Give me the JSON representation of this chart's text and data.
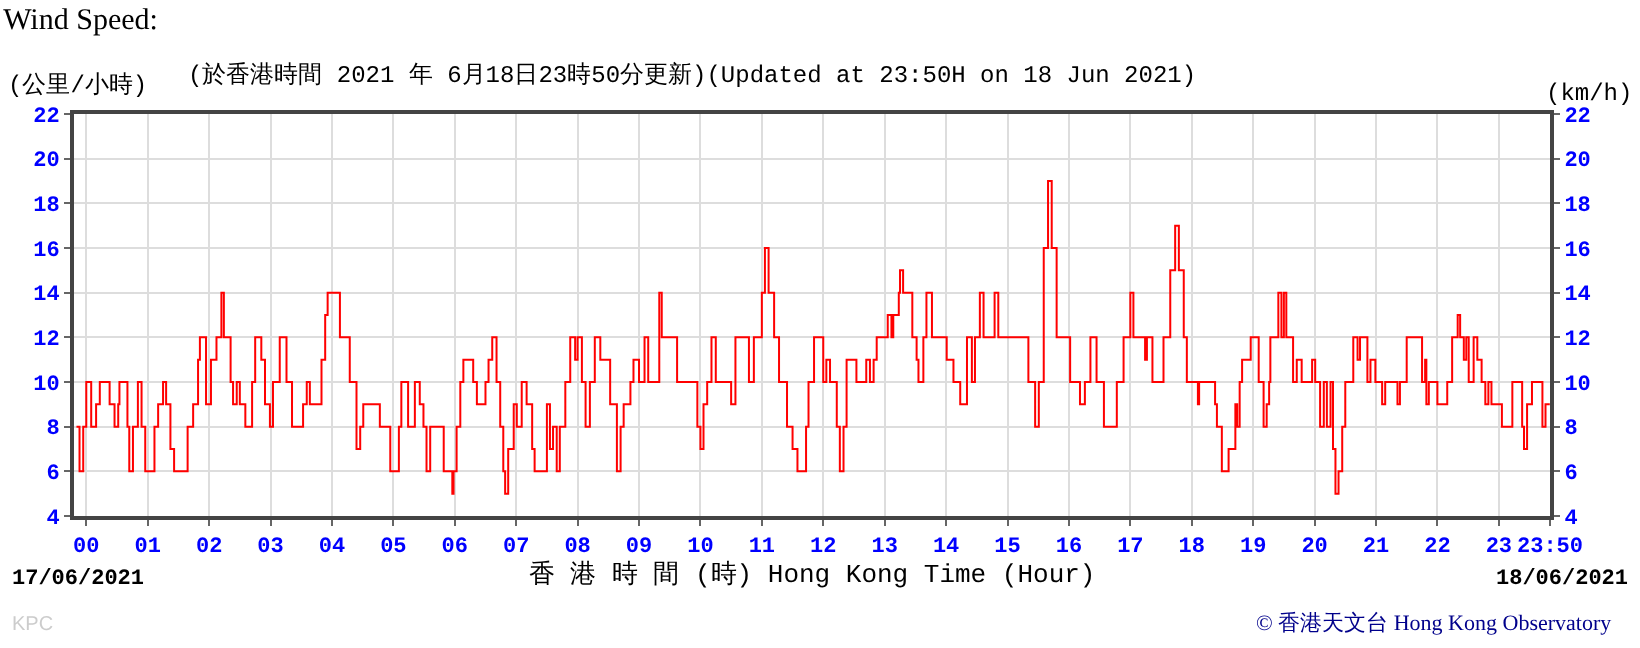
{
  "chart_data": {
    "type": "step",
    "title": "Wind Speed:",
    "subtitle": "(於香港時間 2021 年 6月18日23時50分更新)(Updated at 23:50H on 18 Jun 2021)",
    "xlabel": "香 港 時 間 (時) Hong Kong Time (Hour)",
    "ylabel": "(公里/小時)",
    "y2label": "(km/h)",
    "annotations": [
      "17/06/2021",
      "18/06/2021",
      "© 香港天文台 Hong Kong Observatory",
      "KPC"
    ],
    "xlim": [
      -0.2,
      23.8333
    ],
    "ylim": [
      4,
      22
    ],
    "y2lim": [
      4,
      22
    ],
    "xticks": [
      {
        "value": 0,
        "label": "00"
      },
      {
        "value": 1,
        "label": "01"
      },
      {
        "value": 2,
        "label": "02"
      },
      {
        "value": 3,
        "label": "03"
      },
      {
        "value": 4,
        "label": "04"
      },
      {
        "value": 5,
        "label": "05"
      },
      {
        "value": 6,
        "label": "06"
      },
      {
        "value": 7,
        "label": "07"
      },
      {
        "value": 8,
        "label": "08"
      },
      {
        "value": 9,
        "label": "09"
      },
      {
        "value": 10,
        "label": "10"
      },
      {
        "value": 11,
        "label": "11"
      },
      {
        "value": 12,
        "label": "12"
      },
      {
        "value": 13,
        "label": "13"
      },
      {
        "value": 14,
        "label": "14"
      },
      {
        "value": 15,
        "label": "15"
      },
      {
        "value": 16,
        "label": "16"
      },
      {
        "value": 17,
        "label": "17"
      },
      {
        "value": 18,
        "label": "18"
      },
      {
        "value": 19,
        "label": "19"
      },
      {
        "value": 20,
        "label": "20"
      },
      {
        "value": 21,
        "label": "21"
      },
      {
        "value": 22,
        "label": "22"
      },
      {
        "value": 23,
        "label": "23"
      },
      {
        "value": 23.8333,
        "label": "23:50"
      }
    ],
    "yticks": [
      4,
      6,
      8,
      10,
      12,
      14,
      16,
      18,
      20,
      22
    ],
    "y2ticks": [
      4,
      6,
      8,
      10,
      12,
      14,
      16,
      18,
      20,
      22
    ],
    "grid": true,
    "marker": "none",
    "line_style": "solid",
    "series": [
      {
        "color": "#ff0000",
        "x": [
          -0.16,
          -0.11,
          -0.05,
          0.0,
          0.08,
          0.16,
          0.22,
          0.38,
          0.46,
          0.52,
          0.54,
          0.67,
          0.7,
          0.76,
          0.84,
          0.9,
          0.96,
          1.11,
          1.17,
          1.25,
          1.3,
          1.37,
          1.43,
          1.65,
          1.74,
          1.82,
          1.85,
          1.95,
          2.03,
          2.12,
          2.2,
          2.24,
          2.35,
          2.39,
          2.45,
          2.5,
          2.59,
          2.7,
          2.75,
          2.85,
          2.91,
          2.99,
          3.04,
          3.15,
          3.26,
          3.35,
          3.53,
          3.59,
          3.64,
          3.83,
          3.89,
          3.93,
          4.13,
          4.29,
          4.4,
          4.46,
          4.51,
          4.78,
          4.95,
          5.09,
          5.13,
          5.24,
          5.35,
          5.43,
          5.49,
          5.54,
          5.6,
          5.82,
          5.96,
          5.98,
          6.03,
          6.09,
          6.14,
          6.3,
          6.36,
          6.5,
          6.55,
          6.61,
          6.68,
          6.74,
          6.79,
          6.82,
          6.87,
          6.96,
          7.01,
          7.09,
          7.17,
          7.26,
          7.3,
          7.5,
          7.55,
          7.6,
          7.66,
          7.71,
          7.8,
          7.88,
          7.96,
          8.0,
          8.07,
          8.13,
          8.2,
          8.28,
          8.37,
          8.53,
          8.64,
          8.7,
          8.75,
          8.86,
          8.91,
          9.0,
          9.09,
          9.15,
          9.33,
          9.37,
          9.62,
          9.95,
          10.0,
          10.05,
          10.11,
          10.18,
          10.25,
          10.5,
          10.57,
          10.79,
          10.87,
          11.0,
          11.05,
          11.11,
          11.2,
          11.28,
          11.41,
          11.5,
          11.58,
          11.72,
          11.76,
          11.85,
          12.0,
          12.05,
          12.11,
          12.22,
          12.27,
          12.33,
          12.38,
          12.54,
          12.7,
          12.76,
          12.82,
          12.87,
          13.05,
          13.11,
          13.14,
          13.23,
          13.25,
          13.3,
          13.45,
          13.52,
          13.55,
          13.63,
          13.68,
          13.77,
          14.01,
          14.12,
          14.23,
          14.34,
          14.42,
          14.47,
          14.55,
          14.61,
          14.79,
          14.85,
          15.34,
          15.45,
          15.51,
          15.59,
          15.66,
          15.72,
          15.8,
          16.02,
          16.18,
          16.26,
          16.35,
          16.45,
          16.57,
          16.78,
          16.89,
          17.0,
          17.05,
          17.24,
          17.27,
          17.36,
          17.54,
          17.65,
          17.73,
          17.79,
          17.87,
          17.92,
          18.1,
          18.12,
          18.38,
          18.41,
          18.49,
          18.6,
          18.71,
          18.74,
          18.78,
          18.82,
          18.96,
          19.09,
          19.17,
          19.22,
          19.26,
          19.28,
          19.41,
          19.46,
          19.5,
          19.54,
          19.65,
          19.71,
          19.79,
          19.96,
          20.01,
          20.09,
          20.15,
          20.2,
          20.26,
          20.3,
          20.34,
          20.39,
          20.45,
          20.5,
          20.63,
          20.7,
          20.74,
          20.86,
          20.91,
          20.99,
          21.1,
          21.15,
          21.35,
          21.39,
          21.5,
          21.75,
          21.8,
          21.82,
          21.86,
          22.0,
          22.16,
          22.24,
          22.33,
          22.37,
          22.43,
          22.47,
          22.51,
          22.59,
          22.65,
          22.72,
          22.78,
          22.83,
          22.88,
          23.05,
          23.22,
          23.38,
          23.41,
          23.46,
          23.54,
          23.71,
          23.76,
          23.83
        ],
        "values": [
          8,
          6,
          8,
          10,
          8,
          9,
          10,
          9,
          8,
          9,
          10,
          8,
          6,
          8,
          10,
          8,
          6,
          8,
          9,
          10,
          9,
          7,
          6,
          8,
          9,
          11,
          12,
          9,
          11,
          12,
          14,
          12,
          10,
          9,
          10,
          9,
          8,
          10,
          12,
          11,
          9,
          8,
          10,
          12,
          10,
          8,
          9,
          10,
          9,
          11,
          13,
          14,
          12,
          10,
          7,
          8,
          9,
          8,
          6,
          8,
          10,
          8,
          10,
          9,
          8,
          6,
          8,
          6,
          5,
          6,
          8,
          10,
          11,
          10,
          9,
          10,
          11,
          12,
          10,
          8,
          6,
          5,
          7,
          9,
          8,
          10,
          9,
          7,
          6,
          9,
          7,
          8,
          6,
          8,
          10,
          12,
          11,
          12,
          10,
          8,
          10,
          12,
          11,
          9,
          6,
          8,
          9,
          10,
          11,
          10,
          12,
          10,
          14,
          12,
          10,
          8,
          7,
          9,
          10,
          12,
          10,
          9,
          12,
          10,
          12,
          14,
          16,
          14,
          12,
          10,
          8,
          7,
          6,
          8,
          10,
          12,
          10,
          11,
          10,
          8,
          6,
          8,
          11,
          10,
          11,
          10,
          11,
          12,
          13,
          12,
          13,
          14,
          15,
          14,
          12,
          11,
          10,
          12,
          14,
          12,
          11,
          10,
          9,
          12,
          10,
          12,
          14,
          12,
          14,
          12,
          10,
          8,
          10,
          16,
          19,
          16,
          12,
          10,
          9,
          10,
          12,
          10,
          8,
          10,
          12,
          14,
          12,
          11,
          12,
          10,
          12,
          15,
          17,
          15,
          12,
          10,
          9,
          10,
          9,
          8,
          6,
          7,
          9,
          8,
          10,
          11,
          12,
          10,
          8,
          9,
          10,
          12,
          14,
          12,
          14,
          12,
          10,
          11,
          10,
          11,
          10,
          8,
          10,
          8,
          10,
          7,
          5,
          6,
          8,
          10,
          12,
          11,
          12,
          10,
          11,
          10,
          9,
          10,
          9,
          10,
          12,
          10,
          11,
          9,
          10,
          9,
          10,
          12,
          13,
          12,
          11,
          12,
          10,
          12,
          11,
          10,
          9,
          10,
          9,
          8,
          10,
          8,
          7,
          9,
          10,
          8,
          9,
          9
        ]
      }
    ]
  }
}
